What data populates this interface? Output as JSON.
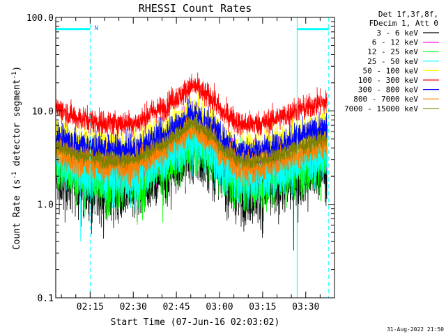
{
  "chart_data": {
    "type": "line",
    "title": "RHESSI Count Rates",
    "xlabel": "Start Time (07-Jun-16 02:03:02)",
    "ylabel_parts": [
      "Count Rate (s",
      "-1",
      " detector segment",
      "-1",
      ")"
    ],
    "y_scale": "log",
    "ylim": [
      0.1,
      100.0
    ],
    "y_ticks": [
      {
        "value": 0.1,
        "label": "0.1"
      },
      {
        "value": 1.0,
        "label": "1.0"
      },
      {
        "value": 10.0,
        "label": "10.0"
      },
      {
        "value": 100.0,
        "label": "100.0"
      }
    ],
    "x_start": "02:03:02",
    "xlim": [
      "02:03:02",
      "03:40:00"
    ],
    "x_ticks": [
      "02:15",
      "02:30",
      "02:45",
      "03:00",
      "03:15",
      "03:30"
    ],
    "legend_header": [
      "Det 1f,3f,8f,",
      "FDecim 1, Att 0"
    ],
    "series": [
      {
        "name": "3 - 6 keV",
        "color": "#000000",
        "base": 1.7,
        "noise": 0.35,
        "spike": 0.012
      },
      {
        "name": "6 - 12 keV",
        "color": "#ff00ff",
        "base": 2.9,
        "noise": 0.28,
        "spike": 0.008
      },
      {
        "name": "12 - 25 keV",
        "color": "#00ff00",
        "base": 2.1,
        "noise": 0.33,
        "spike": 0.012
      },
      {
        "name": "25 - 50 keV",
        "color": "#00ffff",
        "base": 2.4,
        "noise": 0.3,
        "spike": 0.01
      },
      {
        "name": "50 - 100 keV",
        "color": "#ffff00",
        "base": 4.6,
        "noise": 0.22,
        "spike": 0.0
      },
      {
        "name": "100 - 300 keV",
        "color": "#ff0000",
        "base": 8.7,
        "noise": 0.15,
        "spike": 0.0
      },
      {
        "name": "300 - 800 keV",
        "color": "#0000ff",
        "base": 4.4,
        "noise": 0.18,
        "spike": 0.0
      },
      {
        "name": "800 - 7000 keV",
        "color": "#ff8000",
        "base": 3.0,
        "noise": 0.17,
        "spike": 0.0
      },
      {
        "name": "7000 - 15000 keV",
        "color": "#808000",
        "base": 3.5,
        "noise": 0.1,
        "spike": 0.0
      }
    ],
    "envelope": {
      "shape": "smooth background with peak near 02:52, minima near 02:22 and 03:10, rise toward 03:36",
      "points": [
        [
          "02:03",
          1.2
        ],
        [
          "02:12",
          0.95
        ],
        [
          "02:20",
          0.85
        ],
        [
          "02:30",
          0.85
        ],
        [
          "02:40",
          1.2
        ],
        [
          "02:45",
          1.6
        ],
        [
          "02:51",
          2.1
        ],
        [
          "02:56",
          1.65
        ],
        [
          "03:02",
          1.05
        ],
        [
          "03:08",
          0.82
        ],
        [
          "03:15",
          0.85
        ],
        [
          "03:22",
          1.0
        ],
        [
          "03:28",
          1.2
        ],
        [
          "03:36",
          1.4
        ]
      ]
    },
    "markers": [
      {
        "kind": "night",
        "time": "02:03",
        "style": "solid"
      },
      {
        "kind": "night",
        "time": "02:15",
        "style": "dashed",
        "label": "N"
      },
      {
        "kind": "night",
        "time": "03:27",
        "style": "solid"
      },
      {
        "kind": "night",
        "time": "03:38",
        "style": "dashed"
      }
    ],
    "top_bars": [
      {
        "from": "02:03",
        "to": "02:15",
        "value": 75
      },
      {
        "from": "03:27",
        "to": "03:38",
        "value": 75
      }
    ],
    "marker_color": "#00ffff",
    "colors": {
      "background": "#ffffff",
      "axes": "#000000"
    },
    "grid": false,
    "legend_position": "top-right"
  },
  "footer": {
    "timestamp": "31-Aug-2022 21:50"
  }
}
